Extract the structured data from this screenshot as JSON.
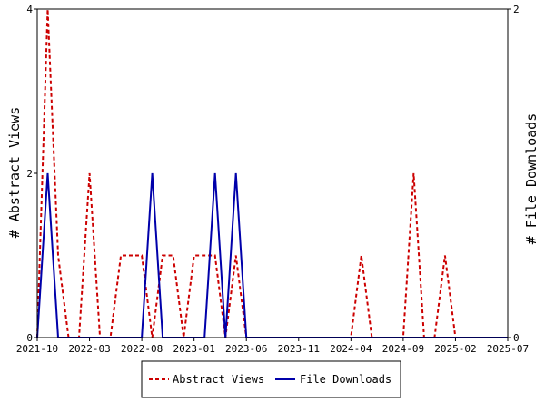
{
  "chart_data": {
    "type": "line",
    "title": "",
    "x_ticks": [
      "2021-10",
      "2022-03",
      "2022-08",
      "2023-01",
      "2023-06",
      "2023-11",
      "2024-04",
      "2024-09",
      "2025-02",
      "2025-07"
    ],
    "x_range": [
      "2021-10",
      "2025-07"
    ],
    "ylabel_left": "# Abstract Views",
    "ylabel_right": "# File Downloads",
    "y_left_ticks": [
      0,
      2,
      4
    ],
    "y_left_range": [
      0,
      4
    ],
    "y_right_ticks": [
      0,
      2
    ],
    "y_right_range": [
      0,
      2
    ],
    "grid": false,
    "legend_position": "bottom",
    "series": [
      {
        "name": "Abstract Views",
        "axis": "left",
        "color": "#cc0000",
        "style": "dashed",
        "x": [
          "2021-10",
          "2021-11",
          "2021-12",
          "2022-01",
          "2022-02",
          "2022-03",
          "2022-04",
          "2022-05",
          "2022-06",
          "2022-07",
          "2022-08",
          "2022-09",
          "2022-10",
          "2022-11",
          "2022-12",
          "2023-01",
          "2023-02",
          "2023-03",
          "2023-04",
          "2023-05",
          "2023-06",
          "2023-07",
          "2023-08",
          "2023-09",
          "2023-10",
          "2023-11",
          "2023-12",
          "2024-01",
          "2024-02",
          "2024-03",
          "2024-04",
          "2024-05",
          "2024-06",
          "2024-07",
          "2024-08",
          "2024-09",
          "2024-10",
          "2024-11",
          "2024-12",
          "2025-01",
          "2025-02",
          "2025-03",
          "2025-04",
          "2025-05",
          "2025-06",
          "2025-07"
        ],
        "values": [
          0,
          4,
          1,
          0,
          0,
          2,
          0,
          0,
          1,
          1,
          1,
          0,
          1,
          1,
          0,
          1,
          1,
          1,
          0,
          1,
          0,
          0,
          0,
          0,
          0,
          0,
          0,
          0,
          0,
          0,
          0,
          1,
          0,
          0,
          0,
          0,
          2,
          0,
          0,
          1,
          0,
          0,
          0,
          0,
          0,
          0
        ]
      },
      {
        "name": "File Downloads",
        "axis": "right",
        "color": "#0000aa",
        "style": "solid",
        "x": [
          "2021-10",
          "2021-11",
          "2021-12",
          "2022-01",
          "2022-02",
          "2022-03",
          "2022-04",
          "2022-05",
          "2022-06",
          "2022-07",
          "2022-08",
          "2022-09",
          "2022-10",
          "2022-11",
          "2022-12",
          "2023-01",
          "2023-02",
          "2023-03",
          "2023-04",
          "2023-05",
          "2023-06",
          "2023-07",
          "2023-08",
          "2023-09",
          "2023-10",
          "2023-11",
          "2023-12",
          "2024-01",
          "2024-02",
          "2024-03",
          "2024-04",
          "2024-05",
          "2024-06",
          "2024-07",
          "2024-08",
          "2024-09",
          "2024-10",
          "2024-11",
          "2024-12",
          "2025-01",
          "2025-02",
          "2025-03",
          "2025-04",
          "2025-05",
          "2025-06",
          "2025-07"
        ],
        "values": [
          0,
          1,
          0,
          0,
          0,
          0,
          0,
          0,
          0,
          0,
          0,
          1,
          0,
          0,
          0,
          0,
          0,
          1,
          0,
          1,
          0,
          0,
          0,
          0,
          0,
          0,
          0,
          0,
          0,
          0,
          0,
          0,
          0,
          0,
          0,
          0,
          0,
          0,
          0,
          0,
          0,
          0,
          0,
          0,
          0,
          0
        ]
      }
    ]
  }
}
